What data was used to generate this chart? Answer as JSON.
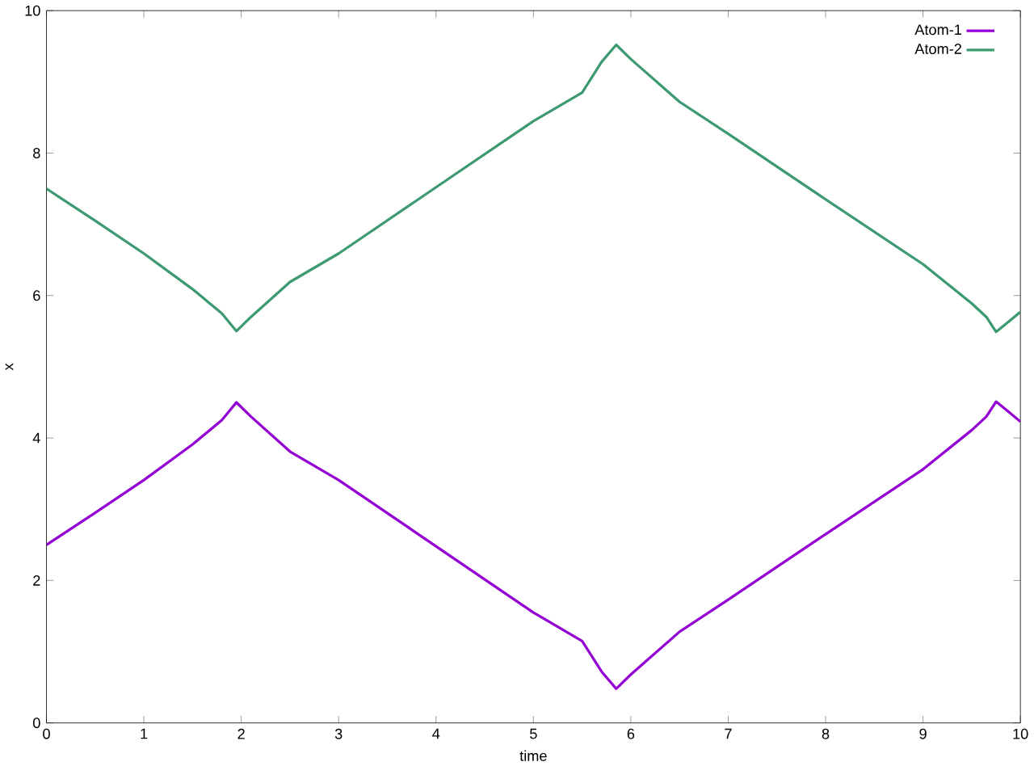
{
  "chart_data": {
    "type": "line",
    "xlabel": "time",
    "ylabel": "x",
    "x": [
      0,
      0.5,
      1,
      1.5,
      1.8,
      1.95,
      2.1,
      2.5,
      3,
      4,
      5,
      5.5,
      5.7,
      5.85,
      6,
      6.5,
      7,
      8,
      9,
      9.5,
      9.65,
      9.75,
      9.85,
      10
    ],
    "series": [
      {
        "name": "Atom-1",
        "color": "#9400d3",
        "values": [
          2.5,
          2.95,
          3.41,
          3.91,
          4.25,
          4.5,
          4.3,
          3.81,
          3.41,
          2.48,
          1.55,
          1.15,
          0.72,
          0.48,
          0.68,
          1.28,
          1.73,
          2.65,
          3.56,
          4.11,
          4.3,
          4.51,
          4.4,
          4.23
        ]
      },
      {
        "name": "Atom-2",
        "color": "#3d9970",
        "values": [
          7.5,
          7.05,
          6.59,
          6.09,
          5.75,
          5.5,
          5.7,
          6.19,
          6.59,
          7.52,
          8.45,
          8.85,
          9.28,
          9.52,
          9.32,
          8.72,
          8.27,
          7.35,
          6.44,
          5.89,
          5.7,
          5.49,
          5.6,
          5.77
        ]
      }
    ],
    "xlim": [
      0,
      10
    ],
    "ylim": [
      0,
      10
    ],
    "xticks": [
      0,
      1,
      2,
      3,
      4,
      5,
      6,
      7,
      8,
      9,
      10
    ],
    "yticks": [
      0,
      2,
      4,
      6,
      8,
      10
    ],
    "legend": "top right",
    "grid": false
  }
}
